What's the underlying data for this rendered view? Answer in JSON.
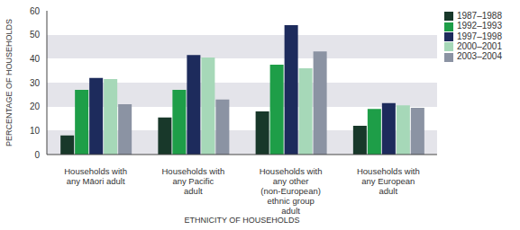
{
  "chart_data": {
    "type": "bar",
    "x_label": "ETHNICITY OF HOUSEHOLDS",
    "y_label": "PERCENTAGE OF HOUSEHOLDS",
    "categories": [
      "Households with any Māori adult",
      "Households with any Pacific adult",
      "Households with any other (non-European) ethnic group adult",
      "Households with any European adult"
    ],
    "series": [
      {
        "name": "1987–1988",
        "color": "#18382a",
        "values": [
          8,
          15.5,
          18,
          12
        ]
      },
      {
        "name": "1992–1993",
        "color": "#1e9e48",
        "values": [
          27,
          27,
          37.5,
          19
        ]
      },
      {
        "name": "1997–1998",
        "color": "#1d2b5c",
        "values": [
          32,
          41.5,
          54,
          21.5
        ]
      },
      {
        "name": "2000–2001",
        "color": "#a6d8b8",
        "values": [
          31.5,
          40.5,
          36,
          20.5
        ]
      },
      {
        "name": "2003–2004",
        "color": "#8b93a3",
        "values": [
          21,
          23,
          43,
          19.5
        ]
      }
    ],
    "ylim": [
      0,
      60
    ],
    "yticks": [
      0,
      10,
      20,
      30,
      40,
      50,
      60
    ],
    "grid": true,
    "legend": "upper right"
  }
}
